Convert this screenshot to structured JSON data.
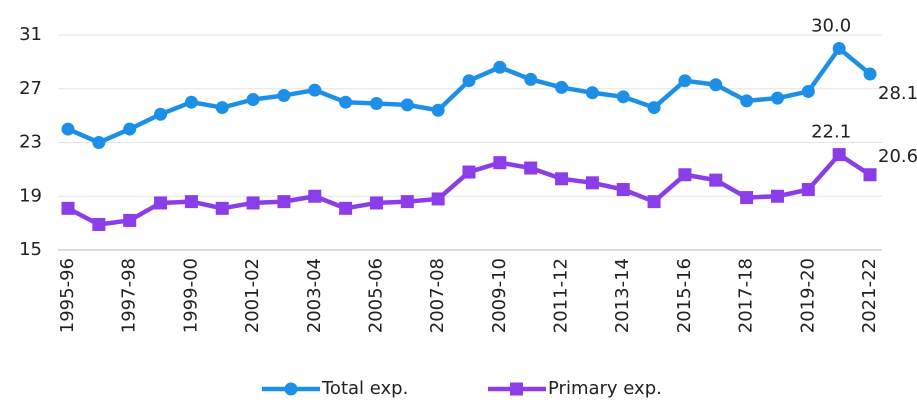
{
  "chart_data": {
    "type": "line",
    "categories": [
      "1995-96",
      null,
      "1997-98",
      null,
      "1999-00",
      null,
      "2001-02",
      null,
      "2003-04",
      null,
      "2005-06",
      null,
      "2007-08",
      null,
      "2009-10",
      null,
      "2011-12",
      null,
      "2013-14",
      null,
      "2015-16",
      null,
      "2017-18",
      null,
      "2019-20",
      null,
      "2021-22"
    ],
    "series": [
      {
        "name": "Total exp.",
        "color": "#1e8fe6",
        "marker": "circle",
        "values": [
          24.0,
          23.0,
          24.0,
          25.1,
          26.0,
          25.6,
          26.2,
          26.5,
          26.9,
          26.0,
          25.9,
          25.8,
          25.4,
          27.6,
          28.6,
          27.7,
          27.1,
          26.7,
          26.4,
          25.6,
          27.6,
          27.3,
          26.1,
          26.3,
          26.8,
          30.0,
          28.1
        ],
        "value_labels": [
          null,
          null,
          null,
          null,
          null,
          null,
          null,
          null,
          null,
          null,
          null,
          null,
          null,
          null,
          null,
          null,
          null,
          null,
          null,
          null,
          null,
          null,
          null,
          null,
          null,
          "30.0",
          "28.1"
        ]
      },
      {
        "name": "Primary exp.",
        "color": "#8b3ee8",
        "marker": "square",
        "values": [
          18.1,
          16.9,
          17.2,
          18.5,
          18.6,
          18.1,
          18.5,
          18.6,
          19.0,
          18.1,
          18.5,
          18.6,
          18.8,
          20.8,
          21.5,
          21.1,
          20.3,
          20.0,
          19.5,
          18.6,
          20.6,
          20.2,
          18.9,
          19.0,
          19.5,
          22.1,
          20.6
        ],
        "value_labels": [
          null,
          null,
          null,
          null,
          null,
          null,
          null,
          null,
          null,
          null,
          null,
          null,
          null,
          null,
          null,
          null,
          null,
          null,
          null,
          null,
          null,
          null,
          null,
          null,
          null,
          "22.1",
          "20.6"
        ]
      }
    ],
    "ylim": [
      15,
      31
    ],
    "yticks": [
      15,
      19,
      23,
      27,
      31
    ],
    "grid": true,
    "legend": "bottom"
  }
}
